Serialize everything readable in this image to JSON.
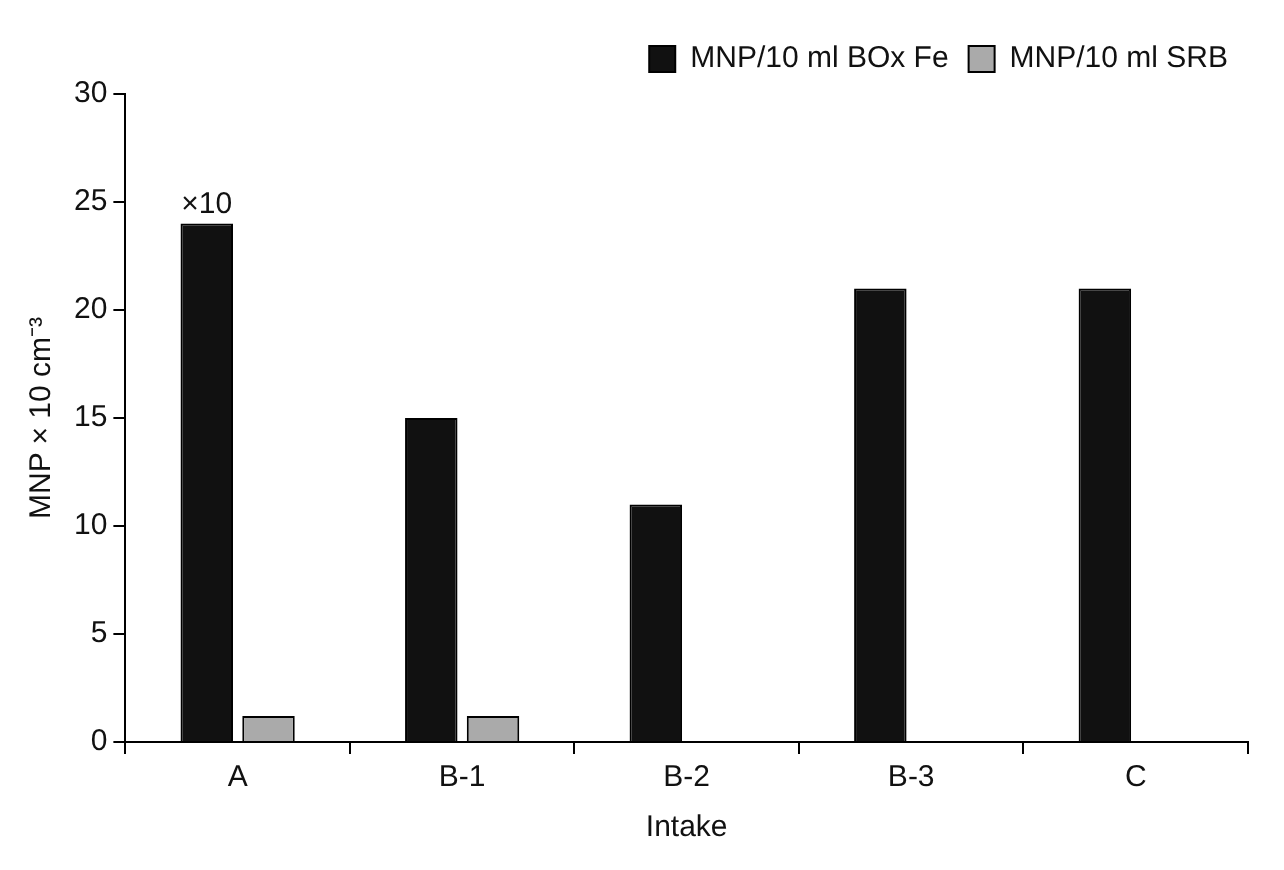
{
  "chart_data": {
    "type": "bar",
    "xlabel": "Intake",
    "ylabel": "MNP × 10 cm⁻³",
    "categories": [
      "A",
      "B-1",
      "B-2",
      "B-3",
      "C"
    ],
    "series": [
      {
        "name": "MNP/10 ml BOx Fe",
        "color": "#111111",
        "values": [
          24,
          15,
          11,
          21,
          21
        ]
      },
      {
        "name": "MNP/10 ml SRB",
        "color": "#aaaaaa",
        "values": [
          1.2,
          1.2,
          null,
          null,
          null
        ]
      }
    ],
    "ylim": [
      0,
      30
    ],
    "yticks": [
      0,
      5,
      10,
      15,
      20,
      25,
      30
    ],
    "grid": false,
    "legend": "top right",
    "annotations": [
      {
        "text": "×10",
        "x": "A",
        "y": 24
      }
    ]
  }
}
